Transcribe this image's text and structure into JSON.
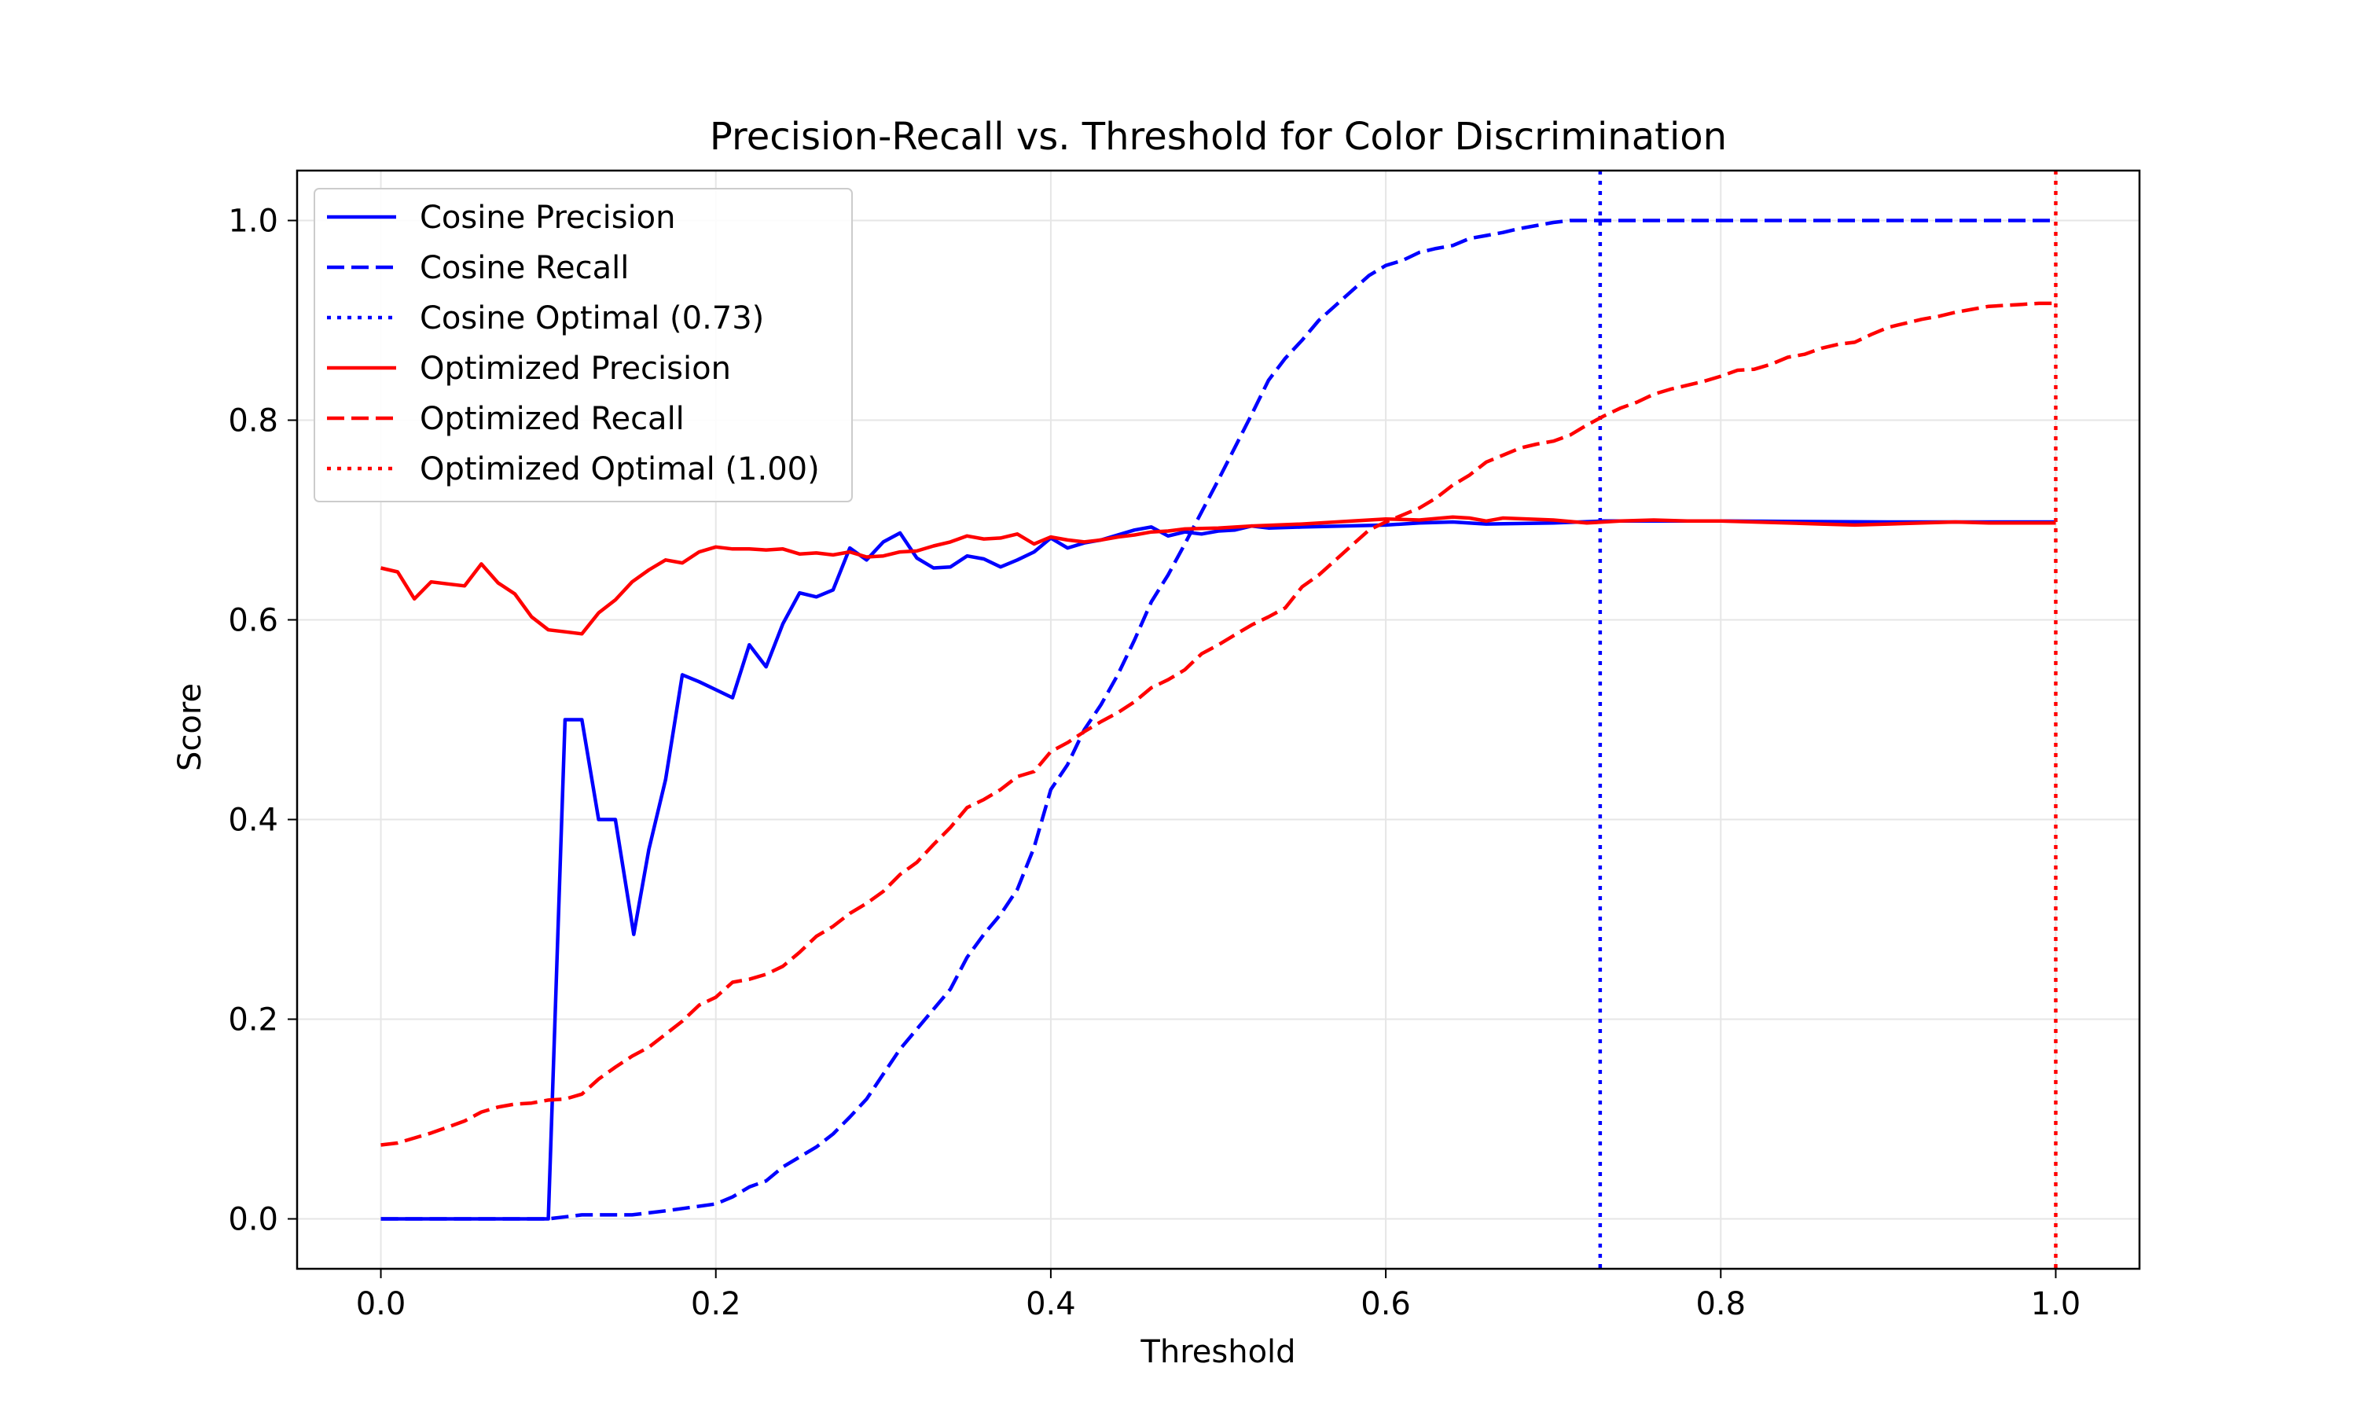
{
  "chart_data": {
    "type": "line",
    "title": "Precision-Recall vs. Threshold for Color Discrimination",
    "xlabel": "Threshold",
    "ylabel": "Score",
    "xlim": [
      -0.05,
      1.05
    ],
    "ylim": [
      -0.05,
      1.05
    ],
    "xticks": [
      0.0,
      0.2,
      0.4,
      0.6,
      0.8,
      1.0
    ],
    "xtick_labels": [
      "0.0",
      "0.2",
      "0.4",
      "0.6",
      "0.8",
      "1.0"
    ],
    "yticks": [
      0.0,
      0.2,
      0.4,
      0.6,
      0.8,
      1.0
    ],
    "ytick_labels": [
      "0.0",
      "0.2",
      "0.4",
      "0.6",
      "0.8",
      "1.0"
    ],
    "grid": true,
    "legend_position": "top-left",
    "series": [
      {
        "name": "Cosine Precision",
        "color": "#0000ff",
        "style": "solid",
        "points": [
          [
            0.0,
            0.0
          ],
          [
            0.1,
            0.0
          ],
          [
            0.11,
            0.5
          ],
          [
            0.12,
            0.5
          ],
          [
            0.13,
            0.4
          ],
          [
            0.14,
            0.4
          ],
          [
            0.151,
            0.285
          ],
          [
            0.16,
            0.37
          ],
          [
            0.17,
            0.44
          ],
          [
            0.18,
            0.545
          ],
          [
            0.19,
            0.538
          ],
          [
            0.2,
            0.53
          ],
          [
            0.21,
            0.522
          ],
          [
            0.22,
            0.575
          ],
          [
            0.23,
            0.553
          ],
          [
            0.24,
            0.596
          ],
          [
            0.25,
            0.627
          ],
          [
            0.26,
            0.623
          ],
          [
            0.27,
            0.63
          ],
          [
            0.28,
            0.672
          ],
          [
            0.29,
            0.66
          ],
          [
            0.3,
            0.678
          ],
          [
            0.31,
            0.687
          ],
          [
            0.32,
            0.662
          ],
          [
            0.33,
            0.652
          ],
          [
            0.34,
            0.653
          ],
          [
            0.35,
            0.664
          ],
          [
            0.36,
            0.661
          ],
          [
            0.37,
            0.653
          ],
          [
            0.38,
            0.66
          ],
          [
            0.39,
            0.668
          ],
          [
            0.4,
            0.682
          ],
          [
            0.41,
            0.672
          ],
          [
            0.42,
            0.677
          ],
          [
            0.43,
            0.68
          ],
          [
            0.44,
            0.685
          ],
          [
            0.45,
            0.69
          ],
          [
            0.46,
            0.693
          ],
          [
            0.47,
            0.684
          ],
          [
            0.48,
            0.688
          ],
          [
            0.49,
            0.686
          ],
          [
            0.5,
            0.689
          ],
          [
            0.51,
            0.69
          ],
          [
            0.52,
            0.694
          ],
          [
            0.53,
            0.692
          ],
          [
            0.55,
            0.693
          ],
          [
            0.6,
            0.695
          ],
          [
            0.62,
            0.697
          ],
          [
            0.64,
            0.698
          ],
          [
            0.66,
            0.696
          ],
          [
            0.7,
            0.697
          ],
          [
            0.73,
            0.699
          ],
          [
            0.8,
            0.699
          ],
          [
            0.9,
            0.698
          ],
          [
            1.0,
            0.698
          ]
        ]
      },
      {
        "name": "Cosine Recall",
        "color": "#0000ff",
        "style": "dashed",
        "points": [
          [
            0.0,
            0.0
          ],
          [
            0.1,
            0.0
          ],
          [
            0.12,
            0.004
          ],
          [
            0.15,
            0.004
          ],
          [
            0.17,
            0.008
          ],
          [
            0.2,
            0.015
          ],
          [
            0.21,
            0.022
          ],
          [
            0.22,
            0.032
          ],
          [
            0.23,
            0.038
          ],
          [
            0.24,
            0.052
          ],
          [
            0.25,
            0.062
          ],
          [
            0.26,
            0.072
          ],
          [
            0.27,
            0.085
          ],
          [
            0.28,
            0.102
          ],
          [
            0.29,
            0.12
          ],
          [
            0.3,
            0.145
          ],
          [
            0.31,
            0.17
          ],
          [
            0.32,
            0.19
          ],
          [
            0.33,
            0.21
          ],
          [
            0.34,
            0.23
          ],
          [
            0.35,
            0.262
          ],
          [
            0.36,
            0.285
          ],
          [
            0.37,
            0.305
          ],
          [
            0.38,
            0.33
          ],
          [
            0.39,
            0.372
          ],
          [
            0.4,
            0.43
          ],
          [
            0.41,
            0.455
          ],
          [
            0.42,
            0.49
          ],
          [
            0.43,
            0.515
          ],
          [
            0.44,
            0.545
          ],
          [
            0.45,
            0.58
          ],
          [
            0.46,
            0.618
          ],
          [
            0.47,
            0.645
          ],
          [
            0.48,
            0.676
          ],
          [
            0.49,
            0.708
          ],
          [
            0.5,
            0.74
          ],
          [
            0.51,
            0.773
          ],
          [
            0.52,
            0.806
          ],
          [
            0.53,
            0.84
          ],
          [
            0.54,
            0.862
          ],
          [
            0.55,
            0.88
          ],
          [
            0.56,
            0.9
          ],
          [
            0.57,
            0.915
          ],
          [
            0.58,
            0.93
          ],
          [
            0.59,
            0.945
          ],
          [
            0.6,
            0.955
          ],
          [
            0.61,
            0.96
          ],
          [
            0.62,
            0.968
          ],
          [
            0.63,
            0.972
          ],
          [
            0.64,
            0.975
          ],
          [
            0.65,
            0.982
          ],
          [
            0.66,
            0.985
          ],
          [
            0.67,
            0.988
          ],
          [
            0.68,
            0.992
          ],
          [
            0.69,
            0.995
          ],
          [
            0.7,
            0.998
          ],
          [
            0.71,
            1.0
          ],
          [
            0.73,
            1.0
          ],
          [
            1.0,
            1.0
          ]
        ]
      },
      {
        "name": "Cosine Optimal (0.73)",
        "color": "#0000ff",
        "style": "dotted",
        "vline": 0.728
      },
      {
        "name": "Optimized Precision",
        "color": "#ff0000",
        "style": "solid",
        "points": [
          [
            0.0,
            0.652
          ],
          [
            0.01,
            0.648
          ],
          [
            0.02,
            0.621
          ],
          [
            0.03,
            0.638
          ],
          [
            0.04,
            0.636
          ],
          [
            0.05,
            0.634
          ],
          [
            0.06,
            0.656
          ],
          [
            0.07,
            0.637
          ],
          [
            0.08,
            0.626
          ],
          [
            0.09,
            0.603
          ],
          [
            0.1,
            0.59
          ],
          [
            0.11,
            0.588
          ],
          [
            0.12,
            0.586
          ],
          [
            0.13,
            0.607
          ],
          [
            0.14,
            0.62
          ],
          [
            0.15,
            0.638
          ],
          [
            0.16,
            0.65
          ],
          [
            0.17,
            0.66
          ],
          [
            0.18,
            0.657
          ],
          [
            0.19,
            0.668
          ],
          [
            0.2,
            0.673
          ],
          [
            0.21,
            0.671
          ],
          [
            0.22,
            0.671
          ],
          [
            0.23,
            0.67
          ],
          [
            0.24,
            0.671
          ],
          [
            0.25,
            0.666
          ],
          [
            0.26,
            0.667
          ],
          [
            0.27,
            0.665
          ],
          [
            0.28,
            0.668
          ],
          [
            0.29,
            0.663
          ],
          [
            0.3,
            0.664
          ],
          [
            0.31,
            0.668
          ],
          [
            0.32,
            0.669
          ],
          [
            0.33,
            0.674
          ],
          [
            0.34,
            0.678
          ],
          [
            0.35,
            0.684
          ],
          [
            0.36,
            0.681
          ],
          [
            0.37,
            0.682
          ],
          [
            0.38,
            0.686
          ],
          [
            0.39,
            0.676
          ],
          [
            0.4,
            0.683
          ],
          [
            0.41,
            0.68
          ],
          [
            0.42,
            0.678
          ],
          [
            0.43,
            0.68
          ],
          [
            0.44,
            0.683
          ],
          [
            0.45,
            0.685
          ],
          [
            0.46,
            0.688
          ],
          [
            0.47,
            0.689
          ],
          [
            0.48,
            0.691
          ],
          [
            0.5,
            0.692
          ],
          [
            0.52,
            0.694
          ],
          [
            0.55,
            0.696
          ],
          [
            0.58,
            0.699
          ],
          [
            0.6,
            0.701
          ],
          [
            0.62,
            0.7
          ],
          [
            0.64,
            0.703
          ],
          [
            0.65,
            0.702
          ],
          [
            0.66,
            0.699
          ],
          [
            0.67,
            0.702
          ],
          [
            0.7,
            0.7
          ],
          [
            0.72,
            0.697
          ],
          [
            0.74,
            0.699
          ],
          [
            0.76,
            0.7
          ],
          [
            0.78,
            0.699
          ],
          [
            0.8,
            0.699
          ],
          [
            0.82,
            0.698
          ],
          [
            0.84,
            0.697
          ],
          [
            0.86,
            0.696
          ],
          [
            0.88,
            0.695
          ],
          [
            0.9,
            0.696
          ],
          [
            0.92,
            0.697
          ],
          [
            0.94,
            0.698
          ],
          [
            0.96,
            0.697
          ],
          [
            0.98,
            0.697
          ],
          [
            1.0,
            0.697
          ]
        ]
      },
      {
        "name": "Optimized Recall",
        "color": "#ff0000",
        "style": "dashed",
        "points": [
          [
            0.0,
            0.074
          ],
          [
            0.01,
            0.076
          ],
          [
            0.02,
            0.081
          ],
          [
            0.03,
            0.086
          ],
          [
            0.04,
            0.092
          ],
          [
            0.05,
            0.098
          ],
          [
            0.06,
            0.107
          ],
          [
            0.07,
            0.112
          ],
          [
            0.08,
            0.115
          ],
          [
            0.09,
            0.116
          ],
          [
            0.1,
            0.119
          ],
          [
            0.11,
            0.12
          ],
          [
            0.12,
            0.125
          ],
          [
            0.13,
            0.14
          ],
          [
            0.14,
            0.152
          ],
          [
            0.15,
            0.163
          ],
          [
            0.16,
            0.172
          ],
          [
            0.17,
            0.185
          ],
          [
            0.18,
            0.198
          ],
          [
            0.19,
            0.214
          ],
          [
            0.2,
            0.222
          ],
          [
            0.21,
            0.237
          ],
          [
            0.22,
            0.24
          ],
          [
            0.23,
            0.245
          ],
          [
            0.24,
            0.253
          ],
          [
            0.25,
            0.267
          ],
          [
            0.26,
            0.283
          ],
          [
            0.27,
            0.293
          ],
          [
            0.28,
            0.306
          ],
          [
            0.29,
            0.316
          ],
          [
            0.3,
            0.328
          ],
          [
            0.31,
            0.345
          ],
          [
            0.32,
            0.357
          ],
          [
            0.33,
            0.375
          ],
          [
            0.34,
            0.392
          ],
          [
            0.35,
            0.412
          ],
          [
            0.36,
            0.42
          ],
          [
            0.37,
            0.43
          ],
          [
            0.38,
            0.443
          ],
          [
            0.39,
            0.448
          ],
          [
            0.4,
            0.468
          ],
          [
            0.41,
            0.477
          ],
          [
            0.42,
            0.488
          ],
          [
            0.43,
            0.498
          ],
          [
            0.44,
            0.507
          ],
          [
            0.45,
            0.518
          ],
          [
            0.46,
            0.532
          ],
          [
            0.47,
            0.54
          ],
          [
            0.48,
            0.55
          ],
          [
            0.49,
            0.566
          ],
          [
            0.5,
            0.575
          ],
          [
            0.51,
            0.585
          ],
          [
            0.52,
            0.595
          ],
          [
            0.53,
            0.603
          ],
          [
            0.54,
            0.612
          ],
          [
            0.55,
            0.633
          ],
          [
            0.56,
            0.645
          ],
          [
            0.57,
            0.66
          ],
          [
            0.58,
            0.675
          ],
          [
            0.59,
            0.69
          ],
          [
            0.6,
            0.698
          ],
          [
            0.61,
            0.705
          ],
          [
            0.62,
            0.712
          ],
          [
            0.63,
            0.722
          ],
          [
            0.64,
            0.735
          ],
          [
            0.65,
            0.745
          ],
          [
            0.66,
            0.758
          ],
          [
            0.67,
            0.765
          ],
          [
            0.68,
            0.772
          ],
          [
            0.69,
            0.776
          ],
          [
            0.7,
            0.779
          ],
          [
            0.71,
            0.785
          ],
          [
            0.72,
            0.795
          ],
          [
            0.73,
            0.804
          ],
          [
            0.74,
            0.812
          ],
          [
            0.75,
            0.818
          ],
          [
            0.76,
            0.826
          ],
          [
            0.77,
            0.831
          ],
          [
            0.78,
            0.835
          ],
          [
            0.79,
            0.839
          ],
          [
            0.8,
            0.844
          ],
          [
            0.81,
            0.85
          ],
          [
            0.82,
            0.851
          ],
          [
            0.83,
            0.856
          ],
          [
            0.84,
            0.863
          ],
          [
            0.85,
            0.866
          ],
          [
            0.86,
            0.872
          ],
          [
            0.87,
            0.876
          ],
          [
            0.88,
            0.878
          ],
          [
            0.89,
            0.886
          ],
          [
            0.9,
            0.893
          ],
          [
            0.91,
            0.897
          ],
          [
            0.92,
            0.901
          ],
          [
            0.93,
            0.904
          ],
          [
            0.94,
            0.908
          ],
          [
            0.95,
            0.911
          ],
          [
            0.96,
            0.914
          ],
          [
            0.97,
            0.915
          ],
          [
            0.98,
            0.916
          ],
          [
            0.99,
            0.917
          ],
          [
            1.0,
            0.917
          ]
        ]
      },
      {
        "name": "Optimized Optimal (1.00)",
        "color": "#ff0000",
        "style": "dotted",
        "vline": 1.0
      }
    ]
  }
}
